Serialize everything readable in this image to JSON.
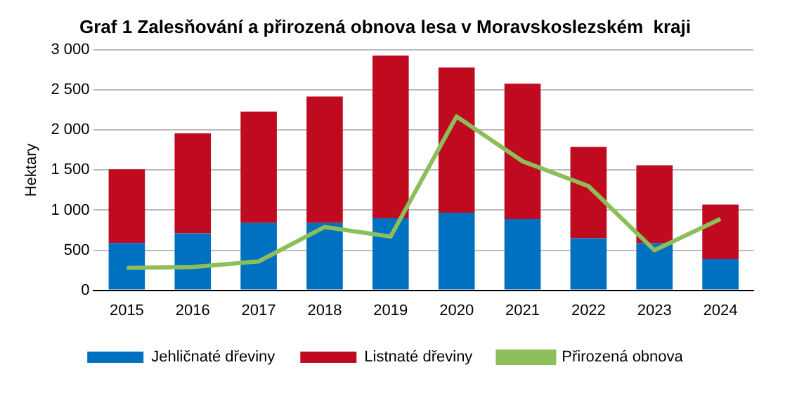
{
  "chart_data": {
    "type": "bar",
    "title": "Graf 1 Zalesňování a přirozená obnova lesa v Moravskoslezském  kraji",
    "ylabel": "Hektary",
    "stacked": true,
    "categories": [
      "2015",
      "2016",
      "2017",
      "2018",
      "2019",
      "2020",
      "2021",
      "2022",
      "2023",
      "2024"
    ],
    "series": [
      {
        "name": "Jehličnaté dřeviny",
        "color": "#0070c0",
        "values": [
          590,
          710,
          840,
          840,
          900,
          970,
          890,
          650,
          590,
          390
        ]
      },
      {
        "name": "Listnaté dřeviny",
        "color": "#c00a20",
        "values": [
          920,
          1250,
          1390,
          1580,
          2030,
          1810,
          1690,
          1140,
          970,
          680
        ]
      },
      {
        "name": "Přirozená obnova",
        "type": "line",
        "color": "#8cbf5a",
        "marker": "none",
        "values": [
          280,
          290,
          360,
          790,
          670,
          2170,
          1610,
          1300,
          500,
          890
        ]
      }
    ],
    "ylim": [
      0,
      3000
    ],
    "yticks": [
      0,
      500,
      {
        "value": 1000,
        "label": "1 000"
      },
      {
        "value": 1500,
        "label": "1 500"
      },
      {
        "value": 2000,
        "label": "2 000"
      },
      {
        "value": 2500,
        "label": "2 500"
      },
      {
        "value": 3000,
        "label": "3 000"
      }
    ],
    "grid": "y",
    "legend": "bottom"
  }
}
